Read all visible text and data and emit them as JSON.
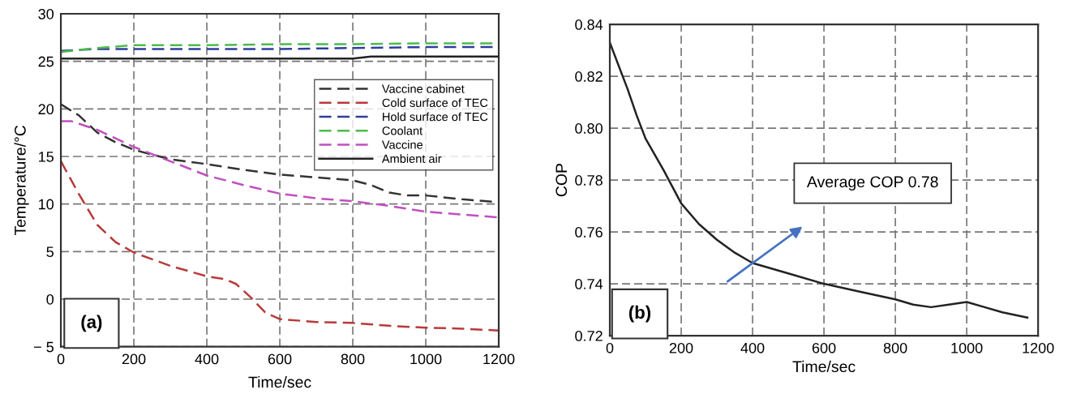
{
  "chart_data": [
    {
      "type": "line",
      "xlabel": "Time/sec",
      "ylabel": "Temperature/°C",
      "xlim": [
        0,
        1200
      ],
      "ylim": [
        -5,
        30
      ],
      "xticks": [
        0,
        200,
        400,
        600,
        800,
        1000,
        1200
      ],
      "yticks": [
        {
          "value": -5,
          "label": "− 5"
        },
        0,
        5,
        10,
        15,
        20,
        25,
        30
      ],
      "grid": true,
      "legend": "top right",
      "annotations": [
        "(a)"
      ],
      "series": [
        {
          "name": "Vaccine cabinet",
          "color": "#333333",
          "line_style": "dashed",
          "x": [
            0,
            50,
            100,
            150,
            200,
            300,
            400,
            500,
            600,
            700,
            800,
            850,
            900,
            950,
            1000,
            1100,
            1200
          ],
          "values": [
            20.5,
            19.3,
            17.5,
            16.5,
            15.7,
            14.7,
            14.2,
            13.6,
            13.1,
            12.8,
            12.5,
            12.0,
            11.2,
            10.9,
            10.9,
            10.5,
            10.2
          ]
        },
        {
          "name": "Cold surface of TEC",
          "color": "#b83a3a",
          "line_style": "dashed",
          "x": [
            0,
            50,
            100,
            150,
            200,
            300,
            400,
            450,
            480,
            520,
            560,
            600,
            700,
            800,
            900,
            1000,
            1100,
            1200
          ],
          "values": [
            14.5,
            11,
            7.8,
            6.0,
            4.9,
            3.5,
            2.4,
            2.1,
            1.6,
            0.2,
            -1.4,
            -2.1,
            -2.4,
            -2.5,
            -2.8,
            -3.0,
            -3.1,
            -3.3
          ]
        },
        {
          "name": "Hold surface of TEC",
          "color": "#2f3e9e",
          "line_style": "dashed",
          "x": [
            0,
            100,
            200,
            400,
            600,
            800,
            1000,
            1200
          ],
          "values": [
            26.1,
            26.3,
            26.3,
            26.3,
            26.3,
            26.4,
            26.5,
            26.5
          ]
        },
        {
          "name": "Coolant",
          "color": "#4cbb4c",
          "line_style": "dashed",
          "x": [
            0,
            100,
            200,
            400,
            600,
            800,
            1000,
            1200
          ],
          "values": [
            26.0,
            26.4,
            26.7,
            26.7,
            26.8,
            26.8,
            26.9,
            26.9
          ]
        },
        {
          "name": "Vaccine",
          "color": "#c050c0",
          "line_style": "dashed",
          "x": [
            0,
            30,
            100,
            200,
            300,
            400,
            500,
            600,
            700,
            800,
            900,
            1000,
            1100,
            1200
          ],
          "values": [
            18.7,
            18.7,
            17.8,
            16.0,
            14.5,
            13.0,
            12.0,
            11.1,
            10.6,
            10.3,
            9.8,
            9.2,
            8.9,
            8.6
          ]
        },
        {
          "name": "Ambient air",
          "color": "#222222",
          "line_style": "solid",
          "x": [
            0,
            200,
            300,
            400,
            600,
            800,
            850,
            1000,
            1200
          ],
          "values": [
            25.3,
            25.3,
            25.3,
            25.3,
            25.3,
            25.3,
            25.5,
            25.5,
            25.5
          ]
        }
      ]
    },
    {
      "type": "line",
      "xlabel": "Time/sec",
      "ylabel": "COP",
      "xlim": [
        0,
        1200
      ],
      "ylim": [
        0.72,
        0.84
      ],
      "xticks": [
        0,
        200,
        400,
        600,
        800,
        1000,
        1200
      ],
      "yticks": [
        {
          "value": 0.72,
          "label": "0.72"
        },
        {
          "value": 0.74,
          "label": "0.74"
        },
        {
          "value": 0.76,
          "label": "0.76"
        },
        {
          "value": 0.78,
          "label": "0.78"
        },
        {
          "value": 0.8,
          "label": "0.80"
        },
        {
          "value": 0.82,
          "label": "0.82"
        },
        {
          "value": 0.84,
          "label": "0.84"
        }
      ],
      "grid": true,
      "annotations": [
        "Average COP 0.78",
        "(b)"
      ],
      "series": [
        {
          "color": "#222222",
          "line_style": "solid",
          "x": [
            0,
            25,
            50,
            75,
            100,
            150,
            200,
            250,
            300,
            350,
            400,
            500,
            600,
            700,
            800,
            850,
            900,
            950,
            1000,
            1050,
            1100,
            1170
          ],
          "values": [
            0.833,
            0.824,
            0.815,
            0.805,
            0.796,
            0.784,
            0.771,
            0.763,
            0.757,
            0.752,
            0.748,
            0.744,
            0.74,
            0.737,
            0.734,
            0.732,
            0.731,
            0.732,
            0.733,
            0.731,
            0.729,
            0.727
          ]
        }
      ]
    }
  ]
}
